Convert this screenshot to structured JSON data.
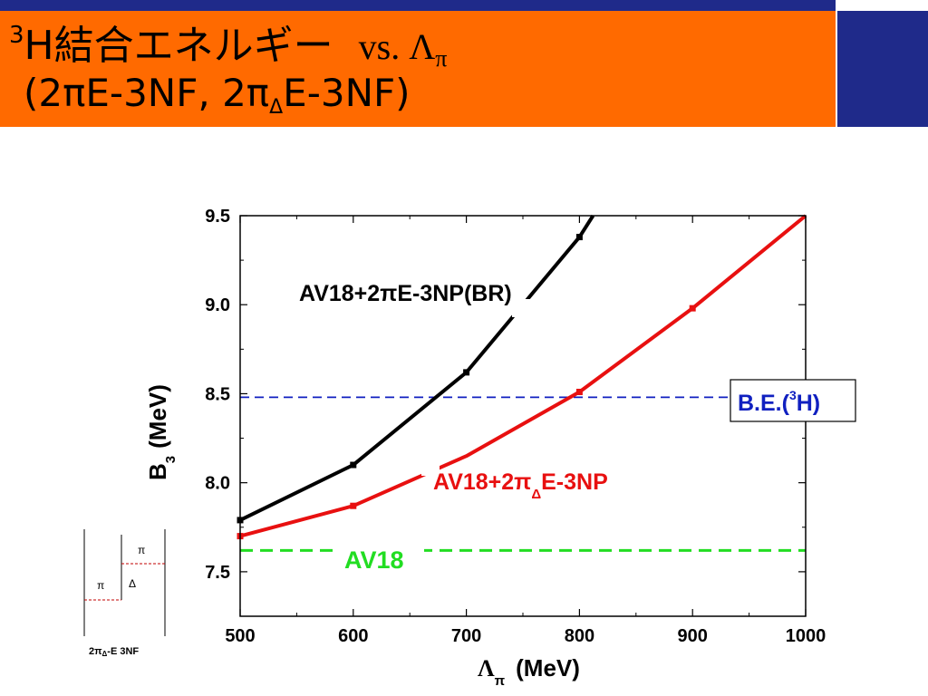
{
  "colors": {
    "header_bg": "#ff6a00",
    "topbar": "#1f2a8a",
    "black_series": "#000000",
    "red_series": "#e81010",
    "green_line": "#22dd22",
    "blue_line": "#1020c0"
  },
  "title": {
    "line1_sup": "3",
    "line1_main": "H結合エネルギー",
    "line1_vs": "vs. Λ",
    "line1_sub": "π",
    "line2_a": "(2πE-3NF, 2π",
    "line2_sub": "Δ",
    "line2_b": "E-3NF)"
  },
  "chart_data": {
    "type": "line",
    "xlabel_main": "Λ",
    "xlabel_sub": "π",
    "xlabel_unit": "(MeV)",
    "ylabel_main": "B",
    "ylabel_sub": "3",
    "ylabel_unit": "(MeV)",
    "xlim": [
      500,
      1000
    ],
    "ylim": [
      7.25,
      9.5
    ],
    "xticks": [
      500,
      600,
      700,
      800,
      900,
      1000
    ],
    "xtick_labels": [
      "500",
      "600",
      "700",
      "800",
      "900",
      "1000"
    ],
    "yticks": [
      7.5,
      8.0,
      8.5,
      9.0,
      9.5
    ],
    "ytick_labels": [
      "7.5",
      "8.0",
      "8.5",
      "9.0",
      "9.5"
    ],
    "series": [
      {
        "name": "AV18+2πE-3NP(BR)",
        "color": "#000000",
        "x": [
          500,
          600,
          700,
          800,
          812
        ],
        "y": [
          7.79,
          8.1,
          8.62,
          9.38,
          9.5
        ],
        "markers": [
          true,
          true,
          true,
          true,
          false
        ]
      },
      {
        "name": "AV18+2πΔE-3NP",
        "color": "#e81010",
        "x": [
          500,
          600,
          700,
          800,
          900,
          1000
        ],
        "y": [
          7.7,
          7.87,
          8.15,
          8.51,
          8.98,
          9.5
        ],
        "markers": [
          true,
          true,
          false,
          true,
          true,
          false
        ]
      }
    ],
    "hlines": [
      {
        "name": "AV18",
        "y": 7.62,
        "color": "#22dd22"
      },
      {
        "name": "B.E.(3H)",
        "y": 8.48,
        "color": "#1020c0"
      }
    ],
    "labels": {
      "black": "AV18+2πE-3NP(BR)",
      "red_a": "AV18+2π",
      "red_sub": "Δ",
      "red_b": "E-3NP",
      "green": "AV18",
      "be_a": "B.E.(",
      "be_sup": "3",
      "be_b": "H)"
    }
  },
  "inset": {
    "pi_top": "π",
    "pi_left": "π",
    "delta": "Δ",
    "caption_a": "2π",
    "caption_sub": "Δ",
    "caption_b": "-E  3NF"
  }
}
